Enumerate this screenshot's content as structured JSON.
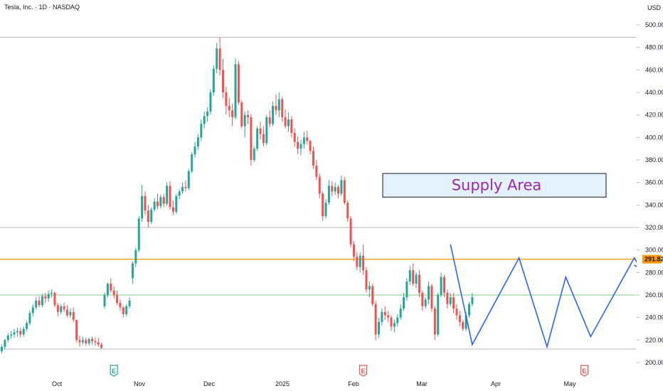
{
  "chart_data": {
    "type": "candlestick",
    "title": "Tesla, Inc. · 1D · NASDAQ",
    "currency": "USD",
    "y_ticks": [
      200,
      220,
      240,
      260,
      280,
      300,
      320,
      340,
      360,
      380,
      400,
      420,
      440,
      460,
      480,
      500
    ],
    "y_tick_labels": [
      "200.00",
      "220.00",
      "240.00",
      "260.00",
      "280.00",
      "300.00",
      "320.00",
      "340.00",
      "360.00",
      "380.00",
      "400.00",
      "420.00",
      "440.00",
      "460.00",
      "480.00",
      "500.00"
    ],
    "ylim": [
      197,
      503
    ],
    "x_labels": [
      "Oct",
      "Nov",
      "Dec",
      "2025",
      "Feb",
      "Mar",
      "Apr",
      "May"
    ],
    "current_price": 291.82,
    "current_price_label": "291.82",
    "horizontal_levels": [
      {
        "name": "top",
        "value": 489,
        "color": "#b2b5be"
      },
      {
        "name": "upper-mid",
        "value": 320,
        "color": "#b2b5be"
      },
      {
        "name": "resistance",
        "value": 291.82,
        "color": "#ff9800"
      },
      {
        "name": "support",
        "value": 260,
        "color": "#81c784"
      },
      {
        "name": "bottom",
        "value": 212,
        "color": "#b2b5be"
      }
    ],
    "supply_area": {
      "label": "Supply Area",
      "top": 368,
      "bottom": 347
    },
    "zigzag": [
      {
        "i": 144,
        "v": 305
      },
      {
        "i": 151,
        "v": 216
      },
      {
        "i": 166,
        "v": 293
      },
      {
        "i": 175,
        "v": 214
      },
      {
        "i": 181,
        "v": 276
      },
      {
        "i": 189,
        "v": 223
      },
      {
        "i": 203,
        "v": 293
      },
      {
        "i": 205,
        "v": 284
      }
    ],
    "earnings_markers": [
      {
        "label": "E",
        "index": 36,
        "color": "#26a69a"
      },
      {
        "label": "E",
        "index": 116,
        "color": "#ef5350"
      },
      {
        "label": "E",
        "index": 187,
        "color": "#ef5350"
      }
    ],
    "colors": {
      "up": "#26a69a",
      "down": "#ef5350",
      "pattern": "#2962ff"
    },
    "ohlc": [
      [
        210.0,
        216.0,
        208.0,
        214.0
      ],
      [
        214.0,
        221.0,
        212.0,
        220.0
      ],
      [
        220.0,
        226.0,
        218.0,
        224.0
      ],
      [
        224.0,
        228.0,
        221.0,
        225.0
      ],
      [
        225.0,
        230.0,
        222.0,
        227.0
      ],
      [
        227.0,
        231.0,
        223.0,
        228.0
      ],
      [
        228.0,
        231.0,
        222.0,
        225.0
      ],
      [
        225.0,
        232.0,
        223.0,
        230.0
      ],
      [
        230.0,
        237.0,
        228.0,
        235.0
      ],
      [
        235.0,
        246.0,
        233.0,
        244.0
      ],
      [
        244.0,
        252.0,
        241.0,
        249.0
      ],
      [
        249.0,
        258.0,
        247.0,
        255.0
      ],
      [
        255.0,
        259.0,
        249.0,
        251.0
      ],
      [
        251.0,
        261.0,
        249.0,
        259.0
      ],
      [
        259.0,
        262.0,
        253.0,
        257.0
      ],
      [
        257.0,
        264.0,
        254.0,
        261.0
      ],
      [
        261.0,
        265.0,
        258.0,
        262.0
      ],
      [
        262.0,
        263.0,
        249.0,
        251.0
      ],
      [
        251.0,
        253.0,
        241.0,
        245.0
      ],
      [
        245.0,
        252.0,
        243.0,
        250.0
      ],
      [
        250.0,
        253.0,
        245.0,
        247.0
      ],
      [
        247.0,
        251.0,
        240.0,
        242.0
      ],
      [
        242.0,
        248.0,
        240.0,
        245.0
      ],
      [
        245.0,
        249.0,
        236.0,
        238.0
      ],
      [
        238.0,
        238.0,
        218.0,
        220.0
      ],
      [
        220.0,
        224.0,
        214.0,
        218.0
      ],
      [
        218.0,
        223.0,
        216.0,
        220.0
      ],
      [
        220.0,
        222.0,
        215.0,
        217.0
      ],
      [
        217.0,
        222.0,
        215.0,
        221.0
      ],
      [
        221.0,
        223.0,
        216.0,
        219.0
      ],
      [
        219.0,
        222.0,
        215.0,
        218.0
      ],
      [
        218.0,
        222.0,
        214.0,
        216.0
      ],
      [
        216.0,
        218.0,
        212.0,
        213.0
      ],
      [
        250.0,
        262.0,
        248.0,
        260.0
      ],
      [
        260.0,
        271.0,
        258.0,
        270.0
      ],
      [
        270.0,
        275.0,
        262.0,
        264.0
      ],
      [
        264.0,
        268.0,
        257.0,
        260.0
      ],
      [
        260.0,
        264.0,
        251.0,
        253.0
      ],
      [
        253.0,
        256.0,
        246.0,
        249.0
      ],
      [
        249.0,
        250.0,
        240.0,
        243.0
      ],
      [
        243.0,
        252.0,
        241.0,
        250.0
      ],
      [
        250.0,
        258.0,
        248.0,
        255.0
      ],
      [
        275.0,
        290.0,
        270.0,
        288.0
      ],
      [
        288.0,
        302.0,
        285.0,
        300.0
      ],
      [
        300.0,
        330.0,
        298.0,
        328.0
      ],
      [
        328.0,
        358.0,
        325.0,
        348.0
      ],
      [
        348.0,
        352.0,
        331.0,
        335.0
      ],
      [
        335.0,
        340.0,
        320.0,
        325.0
      ],
      [
        325.0,
        338.0,
        323.0,
        336.0
      ],
      [
        336.0,
        346.0,
        334.0,
        343.0
      ],
      [
        343.0,
        350.0,
        336.0,
        339.0
      ],
      [
        339.0,
        349.0,
        337.0,
        347.0
      ],
      [
        347.0,
        350.0,
        338.0,
        341.0
      ],
      [
        341.0,
        360.0,
        339.0,
        357.0
      ],
      [
        357.0,
        361.0,
        336.0,
        338.0
      ],
      [
        338.0,
        344.0,
        331.0,
        334.0
      ],
      [
        334.0,
        350.0,
        332.0,
        348.0
      ],
      [
        348.0,
        354.0,
        345.0,
        352.0
      ],
      [
        352.0,
        360.0,
        350.0,
        356.0
      ],
      [
        356.0,
        362.0,
        352.0,
        355.0
      ],
      [
        355.0,
        372.0,
        353.0,
        370.0
      ],
      [
        370.0,
        387.0,
        368.0,
        385.0
      ],
      [
        385.0,
        396.0,
        382.0,
        392.0
      ],
      [
        392.0,
        403.0,
        389.0,
        400.0
      ],
      [
        400.0,
        416.0,
        397.0,
        412.0
      ],
      [
        412.0,
        423.0,
        408.0,
        419.0
      ],
      [
        419.0,
        427.0,
        414.0,
        423.0
      ],
      [
        423.0,
        443.0,
        420.0,
        440.0
      ],
      [
        440.0,
        464.0,
        437.0,
        461.0
      ],
      [
        461.0,
        484.0,
        457.0,
        479.0
      ],
      [
        479.0,
        489.0,
        455.0,
        460.0
      ],
      [
        460.0,
        470.0,
        435.0,
        440.0
      ],
      [
        440.0,
        445.0,
        420.0,
        428.0
      ],
      [
        428.0,
        435.0,
        418.0,
        424.0
      ],
      [
        424.0,
        430.0,
        410.0,
        418.0
      ],
      [
        418.0,
        470.0,
        416.0,
        465.0
      ],
      [
        465.0,
        468.0,
        429.0,
        431.0
      ],
      [
        431.0,
        433.0,
        408.0,
        410.0
      ],
      [
        410.0,
        423.0,
        400.0,
        420.0
      ],
      [
        420.0,
        424.0,
        412.0,
        418.0
      ],
      [
        418.0,
        421.0,
        375.0,
        380.0
      ],
      [
        380.0,
        392.0,
        378.0,
        390.0
      ],
      [
        390.0,
        410.0,
        388.0,
        408.0
      ],
      [
        408.0,
        414.0,
        398.0,
        403.0
      ],
      [
        403.0,
        410.0,
        392.0,
        395.0
      ],
      [
        395.0,
        420.0,
        393.0,
        418.0
      ],
      [
        418.0,
        424.0,
        409.0,
        412.0
      ],
      [
        412.0,
        432.0,
        410.0,
        428.0
      ],
      [
        428.0,
        438.0,
        420.0,
        424.0
      ],
      [
        424.0,
        440.0,
        418.0,
        434.0
      ],
      [
        434.0,
        436.0,
        414.0,
        418.0
      ],
      [
        418.0,
        425.0,
        408.0,
        410.0
      ],
      [
        410.0,
        422.0,
        405.0,
        416.0
      ],
      [
        416.0,
        419.0,
        400.0,
        404.0
      ],
      [
        404.0,
        408.0,
        392.0,
        396.0
      ],
      [
        396.0,
        401.0,
        385.0,
        390.0
      ],
      [
        390.0,
        398.0,
        384.0,
        394.0
      ],
      [
        394.0,
        405.0,
        390.0,
        400.0
      ],
      [
        400.0,
        406.0,
        394.0,
        397.0
      ],
      [
        397.0,
        398.0,
        385.0,
        388.0
      ],
      [
        388.0,
        392.0,
        372.0,
        375.0
      ],
      [
        375.0,
        380.0,
        362.0,
        365.0
      ],
      [
        365.0,
        368.0,
        346.0,
        350.0
      ],
      [
        350.0,
        352.0,
        326.0,
        330.0
      ],
      [
        330.0,
        345.0,
        328.0,
        342.0
      ],
      [
        342.0,
        362.0,
        340.0,
        357.0
      ],
      [
        357.0,
        361.0,
        348.0,
        352.0
      ],
      [
        352.0,
        360.0,
        349.0,
        356.0
      ],
      [
        356.0,
        358.0,
        346.0,
        350.0
      ],
      [
        350.0,
        366.0,
        348.0,
        362.0
      ],
      [
        362.0,
        365.0,
        340.0,
        342.0
      ],
      [
        342.0,
        344.0,
        325.0,
        328.0
      ],
      [
        328.0,
        330.0,
        302.0,
        305.0
      ],
      [
        305.0,
        308.0,
        290.0,
        294.0
      ],
      [
        294.0,
        298.0,
        282.0,
        285.0
      ],
      [
        285.0,
        298.0,
        280.0,
        295.0
      ],
      [
        295.0,
        305.0,
        278.0,
        282.0
      ],
      [
        282.0,
        285.0,
        262.0,
        265.0
      ],
      [
        265.0,
        272.0,
        258.0,
        268.0
      ],
      [
        268.0,
        270.0,
        250.0,
        252.0
      ],
      [
        252.0,
        255.0,
        220.0,
        225.0
      ],
      [
        225.0,
        240.0,
        222.0,
        236.0
      ],
      [
        236.0,
        248.0,
        233.0,
        245.0
      ],
      [
        245.0,
        250.0,
        238.0,
        242.0
      ],
      [
        242.0,
        246.0,
        236.0,
        240.0
      ],
      [
        240.0,
        242.0,
        228.0,
        232.0
      ],
      [
        232.0,
        238.0,
        227.0,
        235.0
      ],
      [
        235.0,
        243.0,
        232.0,
        240.0
      ],
      [
        240.0,
        252.0,
        238.0,
        248.0
      ],
      [
        248.0,
        262.0,
        246.0,
        258.0
      ],
      [
        258.0,
        275.0,
        255.0,
        272.0
      ],
      [
        272.0,
        286.0,
        269.0,
        282.0
      ],
      [
        282.0,
        288.0,
        268.0,
        270.0
      ],
      [
        270.0,
        280.0,
        266.0,
        278.0
      ],
      [
        278.0,
        282.0,
        258.0,
        262.0
      ],
      [
        262.0,
        264.0,
        246.0,
        250.0
      ],
      [
        250.0,
        258.0,
        248.0,
        256.0
      ],
      [
        256.0,
        272.0,
        252.0,
        268.0
      ],
      [
        268.0,
        270.0,
        245.0,
        248.0
      ],
      [
        248.0,
        250.0,
        220.0,
        225.0
      ],
      [
        225.0,
        262.0,
        223.0,
        260.0
      ],
      [
        260.0,
        280.0,
        258.0,
        276.0
      ],
      [
        276.0,
        278.0,
        258.0,
        262.0
      ],
      [
        262.0,
        265.0,
        248.0,
        252.0
      ],
      [
        252.0,
        262.0,
        250.0,
        258.0
      ],
      [
        258.0,
        262.0,
        244.0,
        248.0
      ],
      [
        248.0,
        252.0,
        238.0,
        242.0
      ],
      [
        242.0,
        246.0,
        232.0,
        236.0
      ],
      [
        236.0,
        238.0,
        228.0,
        230.0
      ],
      [
        230.0,
        245.0,
        228.0,
        242.0
      ],
      [
        242.0,
        254.0,
        240.0,
        252.0
      ],
      [
        252.0,
        262.0,
        250.0,
        258.0
      ]
    ]
  },
  "page": {
    "title": "Tesla, Inc. · 1D · NASDAQ",
    "currency": "USD"
  }
}
